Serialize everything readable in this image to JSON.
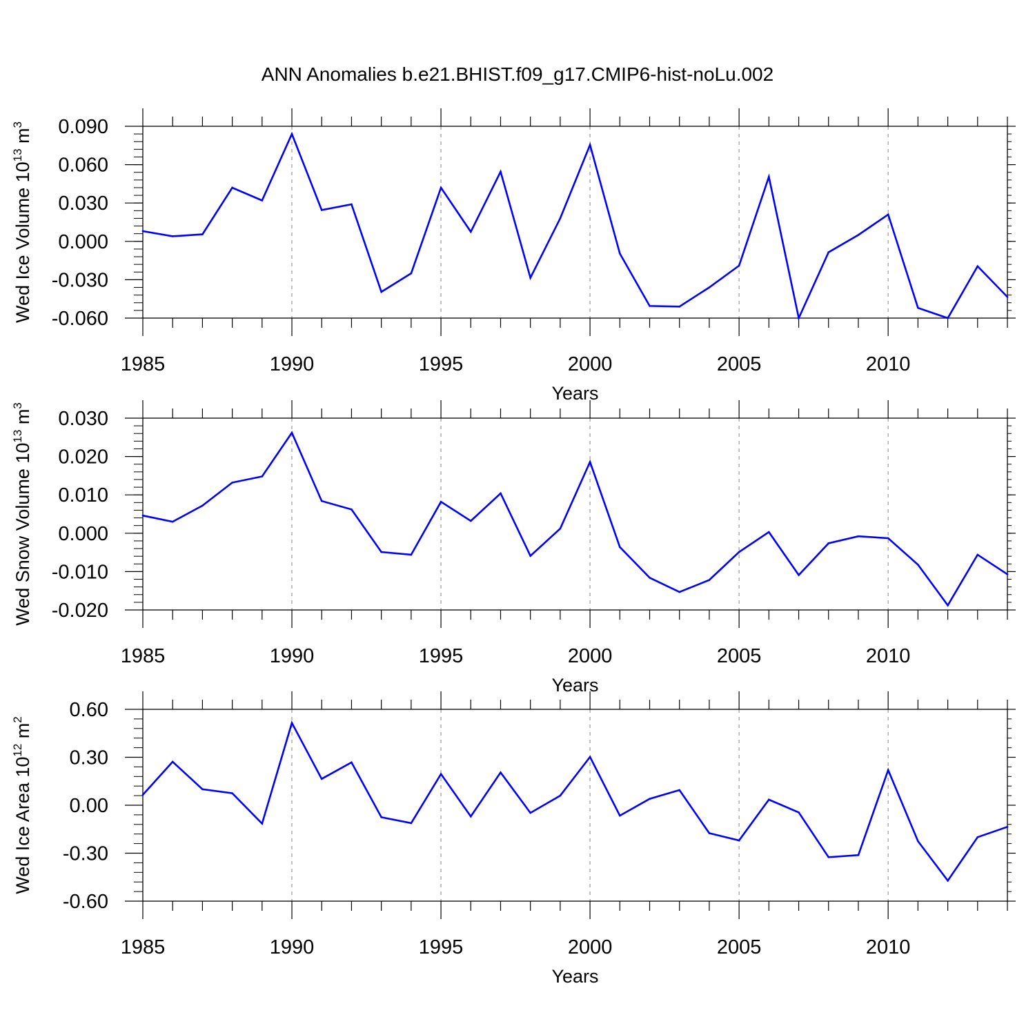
{
  "title": "ANN Anomalies b.e21.BHIST.f09_g17.CMIP6-hist-noLu.002",
  "colors": {
    "line": "#0000ff",
    "frame": "#000000",
    "grid": "#999999"
  },
  "chart_data": [
    {
      "type": "line",
      "ylabel": {
        "text": "Wed Ice Volume 10",
        "exp": "13",
        "unit": " m",
        "unit_exp": "3"
      },
      "xlabel": "Years",
      "xlim": [
        1985,
        2014
      ],
      "ylim": [
        -0.06,
        0.09
      ],
      "x_ticks": [
        "1985",
        "1990",
        "1995",
        "2000",
        "2005",
        "2010"
      ],
      "y_ticks": [
        "0.090",
        "0.060",
        "0.030",
        "0.000",
        "-0.030",
        "-0.060"
      ],
      "grid": "dashed vertical at major x ticks",
      "x": [
        1985,
        1986,
        1987,
        1988,
        1989,
        1990,
        1991,
        1992,
        1993,
        1994,
        1995,
        1996,
        1997,
        1998,
        1999,
        2000,
        2001,
        2002,
        2003,
        2004,
        2005,
        2006,
        2007,
        2008,
        2009,
        2010,
        2011,
        2012,
        2013,
        2014
      ],
      "values": [
        0.008,
        0.004,
        0.0055,
        0.042,
        0.032,
        0.084,
        0.0245,
        0.029,
        -0.0395,
        -0.025,
        0.042,
        0.0075,
        0.0545,
        -0.0285,
        0.018,
        0.0755,
        -0.0095,
        -0.0505,
        -0.051,
        -0.036,
        -0.019,
        0.0505,
        -0.06,
        -0.0085,
        0.005,
        0.021,
        -0.052,
        -0.06,
        -0.0195,
        -0.0435
      ]
    },
    {
      "type": "line",
      "ylabel": {
        "text": "Wed Snow Volume 10",
        "exp": "13",
        "unit": " m",
        "unit_exp": "3"
      },
      "xlabel": "Years",
      "xlim": [
        1985,
        2014
      ],
      "ylim": [
        -0.02,
        0.03
      ],
      "x_ticks": [
        "1985",
        "1990",
        "1995",
        "2000",
        "2005",
        "2010"
      ],
      "y_ticks": [
        "0.030",
        "0.020",
        "0.010",
        "0.000",
        "-0.010",
        "-0.020"
      ],
      "grid": "dashed vertical at major x ticks",
      "x": [
        1985,
        1986,
        1987,
        1988,
        1989,
        1990,
        1991,
        1992,
        1993,
        1994,
        1995,
        1996,
        1997,
        1998,
        1999,
        2000,
        2001,
        2002,
        2003,
        2004,
        2005,
        2006,
        2007,
        2008,
        2009,
        2010,
        2011,
        2012,
        2013,
        2014
      ],
      "values": [
        0.0046,
        0.003,
        0.0072,
        0.0132,
        0.0148,
        0.0262,
        0.0084,
        0.0062,
        -0.0049,
        -0.0056,
        0.0082,
        0.0032,
        0.0104,
        -0.0059,
        0.0012,
        0.0186,
        -0.0036,
        -0.0116,
        -0.0153,
        -0.0122,
        -0.0049,
        0.0003,
        -0.0109,
        -0.0026,
        -0.0008,
        -0.0013,
        -0.0082,
        -0.0188,
        -0.0056,
        -0.0107
      ]
    },
    {
      "type": "line",
      "ylabel": {
        "text": "Wed Ice Area 10",
        "exp": "12",
        "unit": " m",
        "unit_exp": "2"
      },
      "xlabel": "Years",
      "xlim": [
        1985,
        2014
      ],
      "ylim": [
        -0.6,
        0.6
      ],
      "x_ticks": [
        "1985",
        "1990",
        "1995",
        "2000",
        "2005",
        "2010"
      ],
      "y_ticks": [
        "0.60",
        "0.30",
        "0.00",
        "-0.30",
        "-0.60"
      ],
      "grid": "dashed vertical at major x ticks",
      "x": [
        1985,
        1986,
        1987,
        1988,
        1989,
        1990,
        1991,
        1992,
        1993,
        1994,
        1995,
        1996,
        1997,
        1998,
        1999,
        2000,
        2001,
        2002,
        2003,
        2004,
        2005,
        2006,
        2007,
        2008,
        2009,
        2010,
        2011,
        2012,
        2013,
        2014
      ],
      "values": [
        0.065,
        0.272,
        0.1,
        0.075,
        -0.115,
        0.515,
        0.165,
        0.268,
        -0.075,
        -0.112,
        0.195,
        -0.07,
        0.205,
        -0.048,
        0.06,
        0.302,
        -0.065,
        0.04,
        0.095,
        -0.175,
        -0.22,
        0.035,
        -0.045,
        -0.325,
        -0.312,
        0.22,
        -0.225,
        -0.472,
        -0.2,
        -0.135
      ]
    }
  ]
}
